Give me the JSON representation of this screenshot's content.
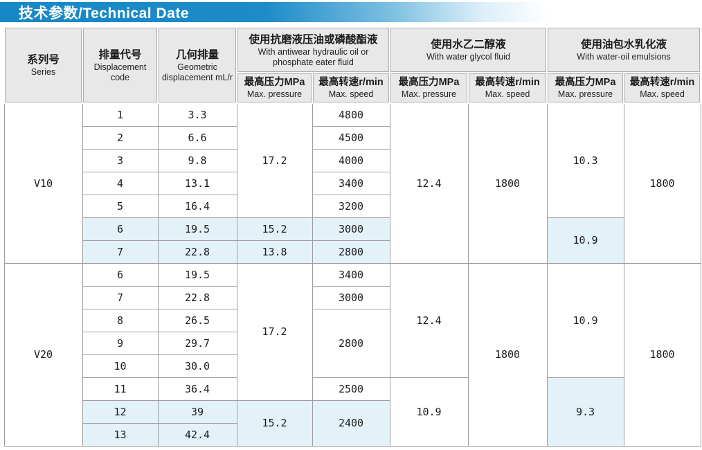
{
  "title": "技术参数/Technical Date",
  "colors": {
    "title_blue": "#1787c6",
    "header_gray": "#e8e8e8",
    "highlight_blue": "#e3f1f9",
    "border_gray": "#9e9e9e"
  },
  "header": {
    "series": {
      "zh": "系列号",
      "en": "Series"
    },
    "code": {
      "zh": "排量代号",
      "en": "Displacement code"
    },
    "displacement": {
      "zh": "几何排量",
      "en": "Geometric displacement mL/r"
    },
    "groups": [
      {
        "zh": "使用抗磨液压油或磷酸酯液",
        "en": "With antiwear hydraulic oil or phosphate eater fluid"
      },
      {
        "zh": "使用水乙二醇液",
        "en": "With water glycol fluid"
      },
      {
        "zh": "使用油包水乳化液",
        "en": "With water-oil emulsions"
      }
    ],
    "sub_pressure": {
      "zh": "最高压力MPa",
      "en": "Max. pressure"
    },
    "sub_speed": {
      "zh": "最高转速r/min",
      "en": "Max. speed"
    }
  },
  "table": {
    "body": [
      {
        "cells": [
          {
            "t": "V10",
            "rs": 7,
            "series": true
          },
          {
            "t": "1"
          },
          {
            "t": "3.3"
          },
          {
            "t": "17.2",
            "rs": 5
          },
          {
            "t": "4800"
          },
          {
            "t": "12.4",
            "rs": 7
          },
          {
            "t": "1800",
            "rs": 7
          },
          {
            "t": "10.3",
            "rs": 5
          },
          {
            "t": "1800",
            "rs": 7
          }
        ]
      },
      {
        "cells": [
          {
            "t": "2"
          },
          {
            "t": "6.6"
          },
          {
            "t": "4500"
          }
        ]
      },
      {
        "cells": [
          {
            "t": "3"
          },
          {
            "t": "9.8"
          },
          {
            "t": "4000"
          }
        ]
      },
      {
        "cells": [
          {
            "t": "4"
          },
          {
            "t": "13.1"
          },
          {
            "t": "3400"
          }
        ]
      },
      {
        "cells": [
          {
            "t": "5"
          },
          {
            "t": "16.4"
          },
          {
            "t": "3200"
          }
        ]
      },
      {
        "cells": [
          {
            "t": "6",
            "hl": true
          },
          {
            "t": "19.5",
            "hl": true
          },
          {
            "t": "15.2",
            "hl": true
          },
          {
            "t": "3000",
            "hl": true
          },
          {
            "t": "10.9",
            "rs": 2,
            "hl": true
          }
        ]
      },
      {
        "cells": [
          {
            "t": "7",
            "hl": true
          },
          {
            "t": "22.8",
            "hl": true
          },
          {
            "t": "13.8",
            "hl": true
          },
          {
            "t": "2800",
            "hl": true
          }
        ]
      },
      {
        "cells": [
          {
            "t": "V20",
            "rs": 8,
            "series": true
          },
          {
            "t": "6"
          },
          {
            "t": "19.5"
          },
          {
            "t": "17.2",
            "rs": 6
          },
          {
            "t": "3400"
          },
          {
            "t": "12.4",
            "rs": 5
          },
          {
            "t": "1800",
            "rs": 8
          },
          {
            "t": "10.9",
            "rs": 5
          },
          {
            "t": "1800",
            "rs": 8
          }
        ]
      },
      {
        "cells": [
          {
            "t": "7"
          },
          {
            "t": "22.8"
          },
          {
            "t": "3000"
          }
        ]
      },
      {
        "cells": [
          {
            "t": "8"
          },
          {
            "t": "26.5"
          },
          {
            "t": "2800",
            "rs": 3
          }
        ]
      },
      {
        "cells": [
          {
            "t": "9"
          },
          {
            "t": "29.7"
          }
        ]
      },
      {
        "cells": [
          {
            "t": "10"
          },
          {
            "t": "30.0"
          }
        ]
      },
      {
        "cells": [
          {
            "t": "11"
          },
          {
            "t": "36.4"
          },
          {
            "t": "2500"
          },
          {
            "t": "10.9",
            "rs": 3
          },
          {
            "t": "9.3",
            "rs": 3,
            "hl": true
          }
        ]
      },
      {
        "cells": [
          {
            "t": "12",
            "hl": true
          },
          {
            "t": "39",
            "hl": true
          },
          {
            "t": "15.2",
            "rs": 2,
            "hl": true
          },
          {
            "t": "2400",
            "rs": 2,
            "hl": true
          }
        ]
      },
      {
        "cells": [
          {
            "t": "13",
            "hl": true
          },
          {
            "t": "42.4",
            "hl": true
          }
        ]
      }
    ]
  }
}
